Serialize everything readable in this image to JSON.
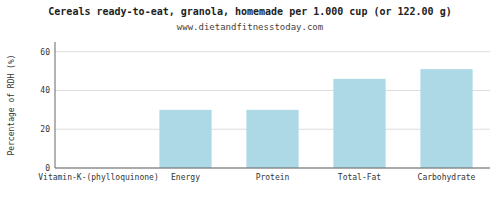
{
  "chart_data": {
    "type": "bar",
    "title": "Cereals ready-to-eat, granola, homemade per 1.000 cup (or 122.00 g)",
    "subtitle": "www.dietandfitnesstoday.com",
    "ylabel": "Percentage of RDH (%)",
    "categories": [
      "Vitamin-K-(phylloquinone)",
      "Energy",
      "Protein",
      "Total-Fat",
      "Carbohydrate"
    ],
    "values": [
      0,
      30,
      30,
      46,
      51
    ],
    "color": "#add8e6",
    "ylim": [
      0,
      65
    ],
    "yticks": [
      0,
      20,
      40,
      60
    ],
    "grid": true
  }
}
